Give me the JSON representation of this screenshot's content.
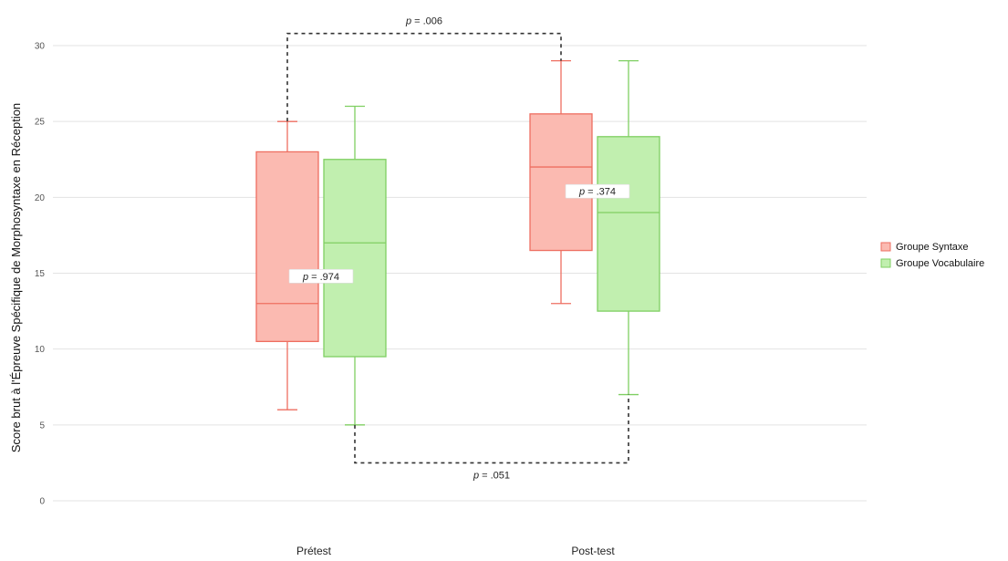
{
  "chart_data": {
    "type": "box",
    "title": "",
    "xlabel": "",
    "ylabel": "Score brut à l'Épreuve Spécifique de Morphosyntaxe en Réception",
    "ylim": [
      0,
      30
    ],
    "yticks": [
      0,
      5,
      10,
      15,
      20,
      25,
      30
    ],
    "grid": true,
    "legend_position": "right",
    "categories": [
      "Prétest",
      "Post-test"
    ],
    "series": [
      {
        "name": "Groupe Syntaxe",
        "fill": "#fbbab1",
        "stroke": "#ee6e60",
        "boxes": [
          {
            "category": "Prétest",
            "min": 6,
            "q1": 10.5,
            "median": 13,
            "q3": 23,
            "max": 25
          },
          {
            "category": "Post-test",
            "min": 13,
            "q1": 16.5,
            "median": 22,
            "q3": 25.5,
            "max": 29
          }
        ]
      },
      {
        "name": "Groupe Vocabulaire",
        "fill": "#c1efaf",
        "stroke": "#7fcf62",
        "boxes": [
          {
            "category": "Prétest",
            "min": 5,
            "q1": 9.5,
            "median": 17,
            "q3": 22.5,
            "max": 26
          },
          {
            "category": "Post-test",
            "min": 7,
            "q1": 12.5,
            "median": 19,
            "q3": 24,
            "max": 29
          }
        ]
      }
    ],
    "annotations": [
      {
        "id": "syntaxe-pre-post",
        "text_prefix": "p",
        "text_value": " = .006",
        "kind": "bracket-top",
        "from": "Groupe Syntaxe|Prétest",
        "to": "Groupe Syntaxe|Post-test",
        "level": 30.8
      },
      {
        "id": "vocab-pre-post",
        "text_prefix": "p",
        "text_value": " = .051",
        "kind": "bracket-bottom",
        "from": "Groupe Vocabulaire|Prétest",
        "to": "Groupe Vocabulaire|Post-test",
        "level": 2.5
      },
      {
        "id": "pretest-groups",
        "text_prefix": "p",
        "text_value": " = .974",
        "kind": "box-label",
        "category": "Prétest",
        "y": 14.8
      },
      {
        "id": "posttest-groups",
        "text_prefix": "p",
        "text_value": " = .374",
        "kind": "box-label",
        "category": "Post-test",
        "y": 20.4
      }
    ]
  }
}
